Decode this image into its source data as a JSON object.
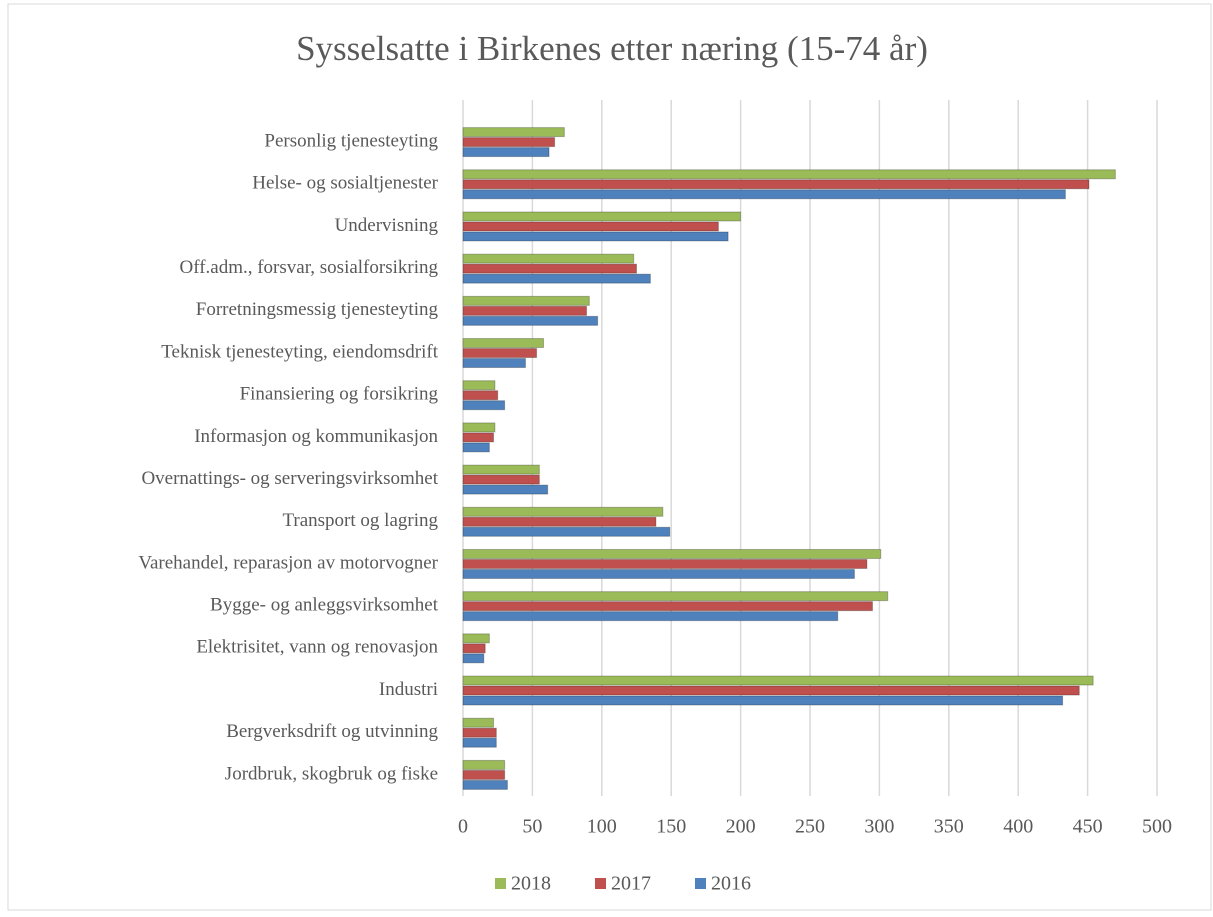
{
  "chart_data": {
    "type": "bar",
    "orientation": "horizontal",
    "title": "Sysselsatte i Birkenes etter næring (15-74 år)",
    "categories": [
      "Personlig tjenesteyting",
      "Helse- og sosialtjenester",
      "Undervisning",
      "Off.adm., forsvar, sosialforsikring",
      "Forretningsmessig tjenesteyting",
      "Teknisk tjenesteyting, eiendomsdrift",
      "Finansiering og forsikring",
      "Informasjon og kommunikasjon",
      "Overnattings- og serveringsvirksomhet",
      "Transport og lagring",
      "Varehandel, reparasjon av motorvogner",
      "Bygge- og anleggsvirksomhet",
      "Elektrisitet, vann og renovasjon",
      "Industri",
      "Bergverksdrift og utvinning",
      "Jordbruk, skogbruk og fiske"
    ],
    "series": [
      {
        "name": "2018",
        "color": "#9bbb59",
        "values": [
          73,
          470,
          200,
          123,
          91,
          58,
          23,
          23,
          55,
          144,
          301,
          306,
          19,
          454,
          22,
          30
        ]
      },
      {
        "name": "2017",
        "color": "#c0504d",
        "values": [
          66,
          451,
          184,
          125,
          89,
          53,
          25,
          22,
          55,
          139,
          291,
          295,
          16,
          444,
          24,
          30
        ]
      },
      {
        "name": "2016",
        "color": "#4f81bd",
        "values": [
          62,
          434,
          191,
          135,
          97,
          45,
          30,
          19,
          61,
          149,
          282,
          270,
          15,
          432,
          24,
          32
        ]
      }
    ],
    "xlim": [
      0,
      500
    ],
    "xticks": [
      0,
      50,
      100,
      150,
      200,
      250,
      300,
      350,
      400,
      450,
      500
    ],
    "grid": true,
    "legend": "bottom"
  }
}
